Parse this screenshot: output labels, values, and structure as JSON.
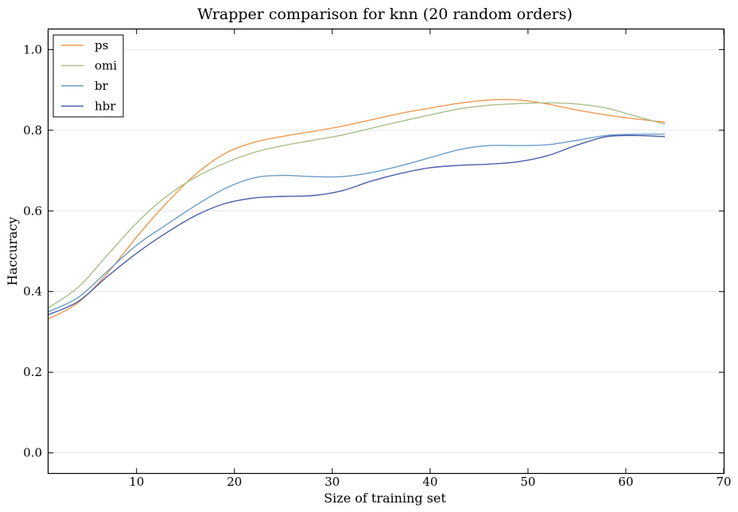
{
  "chart_data": {
    "type": "line",
    "title": "Wrapper comparison for knn (20 random orders)",
    "xlabel": "Size of training set",
    "ylabel": "Haccuracy",
    "xlim": [
      1,
      70
    ],
    "ylim": [
      -0.05,
      1.05
    ],
    "xticks": [
      10,
      20,
      30,
      40,
      50,
      60,
      70
    ],
    "yticks": [
      0.0,
      0.2,
      0.4,
      0.6,
      0.8,
      1.0
    ],
    "xtick_labels": [
      "10",
      "20",
      "30",
      "40",
      "50",
      "60",
      "70"
    ],
    "ytick_labels": [
      "0.0",
      "0.2",
      "0.4",
      "0.6",
      "0.8",
      "1.0"
    ],
    "grid": "horizontal",
    "legend_position": "top-left",
    "series": [
      {
        "name": "ps",
        "color": "#f09a52",
        "x": [
          1,
          4,
          7,
          10,
          13,
          16,
          19,
          22,
          25,
          28,
          31,
          34,
          37,
          40,
          43,
          46,
          49,
          52,
          55,
          58,
          61,
          64
        ],
        "y": [
          0.332,
          0.372,
          0.445,
          0.535,
          0.618,
          0.69,
          0.742,
          0.77,
          0.785,
          0.797,
          0.81,
          0.826,
          0.842,
          0.855,
          0.867,
          0.875,
          0.875,
          0.865,
          0.85,
          0.838,
          0.828,
          0.82
        ]
      },
      {
        "name": "omi",
        "color": "#a9c08a",
        "x": [
          1,
          4,
          7,
          10,
          13,
          16,
          19,
          22,
          25,
          28,
          31,
          34,
          37,
          40,
          43,
          46,
          49,
          52,
          55,
          58,
          61,
          64
        ],
        "y": [
          0.36,
          0.41,
          0.49,
          0.57,
          0.635,
          0.683,
          0.718,
          0.745,
          0.762,
          0.775,
          0.788,
          0.805,
          0.822,
          0.838,
          0.853,
          0.862,
          0.866,
          0.868,
          0.865,
          0.855,
          0.835,
          0.815
        ]
      },
      {
        "name": "br",
        "color": "#6a9ec8",
        "x": [
          1,
          4,
          7,
          10,
          13,
          16,
          19,
          22,
          25,
          28,
          31,
          34,
          37,
          40,
          43,
          46,
          49,
          52,
          55,
          58,
          61,
          64
        ],
        "y": [
          0.35,
          0.385,
          0.45,
          0.515,
          0.565,
          0.613,
          0.655,
          0.682,
          0.688,
          0.685,
          0.685,
          0.695,
          0.712,
          0.732,
          0.752,
          0.762,
          0.762,
          0.764,
          0.775,
          0.787,
          0.79,
          0.79
        ]
      },
      {
        "name": "hbr",
        "color": "#4a5faa",
        "x": [
          1,
          4,
          7,
          10,
          13,
          16,
          19,
          22,
          25,
          28,
          31,
          34,
          37,
          40,
          43,
          46,
          49,
          52,
          55,
          58,
          61,
          64
        ],
        "y": [
          0.343,
          0.375,
          0.437,
          0.495,
          0.545,
          0.588,
          0.618,
          0.632,
          0.636,
          0.638,
          0.65,
          0.674,
          0.693,
          0.707,
          0.713,
          0.716,
          0.722,
          0.737,
          0.763,
          0.784,
          0.787,
          0.784
        ]
      }
    ]
  }
}
